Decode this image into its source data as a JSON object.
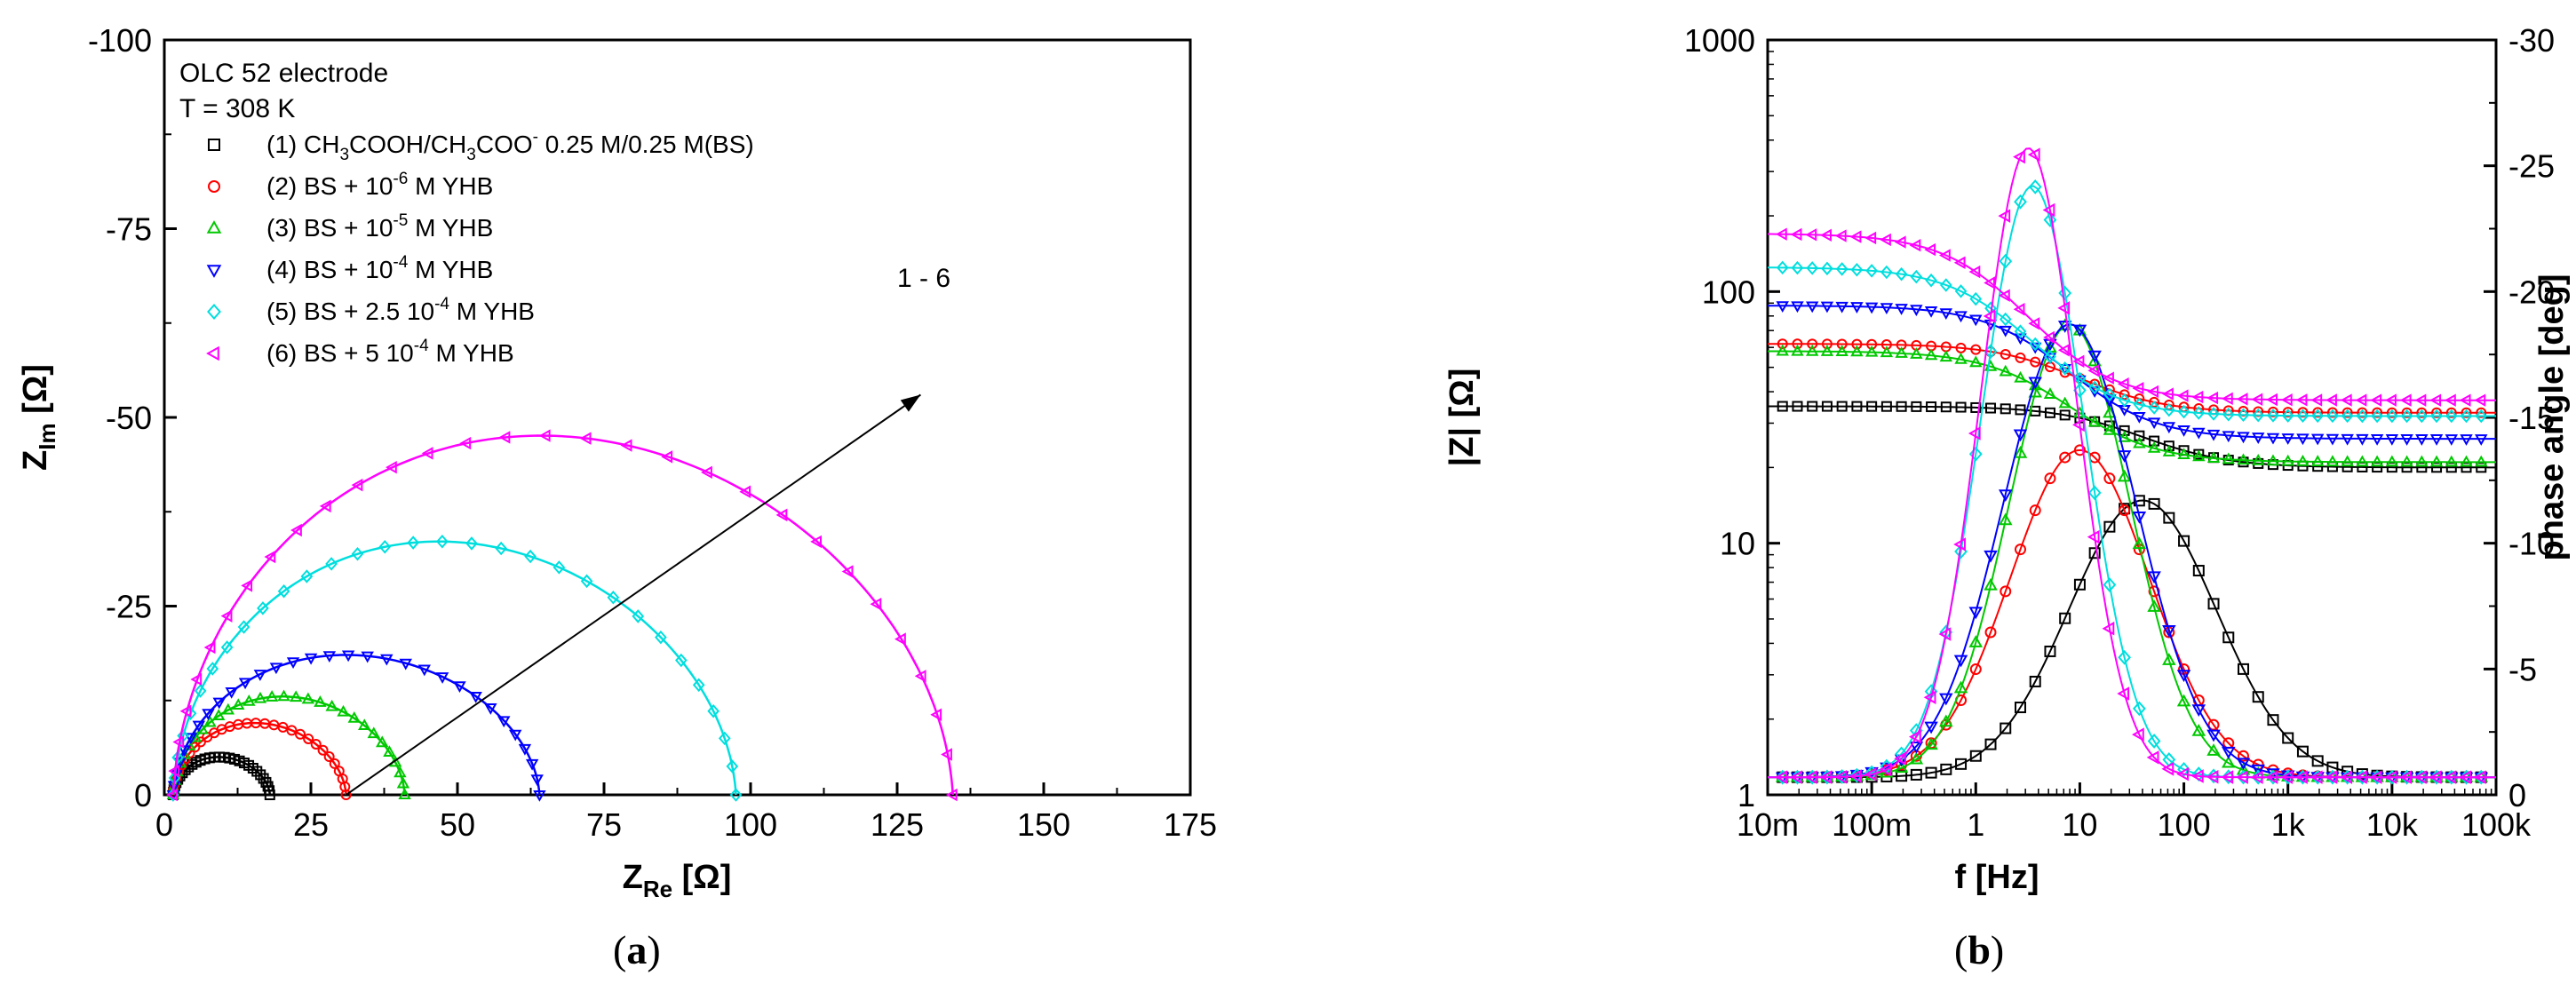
{
  "chart_data": [
    {
      "type": "scatter",
      "panel": "a",
      "panel_label": "(a)",
      "panel_label_parts": [
        "(",
        "a",
        ")"
      ],
      "xlabel": "Z_Re [Ω]",
      "xlabel_parts": {
        "main": "Z",
        "sub": "Re",
        "unit": " [Ω]"
      },
      "ylabel": "Z_Im [Ω]",
      "ylabel_parts": {
        "main": "Z",
        "sub": "Im",
        "unit": " [Ω]"
      },
      "xlim": [
        0,
        175
      ],
      "ylim": [
        0,
        -100
      ],
      "xticks": [
        0,
        25,
        50,
        75,
        100,
        125,
        150,
        175
      ],
      "xtick_labels": [
        "0",
        "25",
        "50",
        "75",
        "100",
        "125",
        "150",
        "175"
      ],
      "yticks": [
        0,
        -25,
        -50,
        -75,
        -100
      ],
      "ytick_labels": [
        "0",
        "-25",
        "-50",
        "-75",
        "-100"
      ],
      "annotations": [
        {
          "text": "OLC 52 electrode"
        },
        {
          "text": "T = 308 K"
        },
        {
          "text": "1 - 6",
          "arrow_from": [
            31,
            0
          ],
          "arrow_to": [
            129,
            -53
          ]
        }
      ],
      "legend": [
        {
          "label": "(1) CH3COOH/CH3COO- 0.25 M/0.25 M(BS)",
          "parts": [
            "(1) CH",
            "3",
            "COOH/CH",
            "3",
            "COO",
            "-",
            " 0.25 M/0.25 M(BS)"
          ],
          "color": "#000000",
          "marker": "square"
        },
        {
          "label": "(2) BS + 10-6 M YHB",
          "parts": [
            "(2) BS + 10",
            "-6",
            " M YHB"
          ],
          "color": "#ff0000",
          "marker": "circle"
        },
        {
          "label": "(3) BS + 10-5 M YHB",
          "parts": [
            "(3) BS + 10",
            "-5",
            " M YHB"
          ],
          "color": "#00c800",
          "marker": "triangle-up"
        },
        {
          "label": "(4) BS + 10-4 M YHB",
          "parts": [
            "(4) BS + 10",
            "-4",
            " M YHB"
          ],
          "color": "#0000ff",
          "marker": "triangle-down"
        },
        {
          "label": "(5) BS + 2.5 10-4 M YHB",
          "parts": [
            "(5) BS + 2.5 10",
            "-4",
            " M YHB"
          ],
          "color": "#00dede",
          "marker": "diamond"
        },
        {
          "label": "(6) BS + 5 10-4 M YHB",
          "parts": [
            "(6) BS + 5 10",
            "-4",
            " M YHB"
          ],
          "color": "#ff00ff",
          "marker": "triangle-left"
        }
      ],
      "series": [
        {
          "name": "(1)",
          "r0": 1.5,
          "r1": 18,
          "z_peak": -5,
          "n_points": 30
        },
        {
          "name": "(2)",
          "r0": 1.5,
          "r1": 31,
          "z_peak": -9.5,
          "n_points": 30
        },
        {
          "name": "(3)",
          "r0": 1.5,
          "r1": 41,
          "z_peak": -13,
          "n_points": 30
        },
        {
          "name": "(4)",
          "r0": 1.5,
          "r1": 64,
          "z_peak": -18.5,
          "n_points": 30
        },
        {
          "name": "(5)",
          "r0": 1.5,
          "r1": 97.5,
          "z_peak": -33.5,
          "n_points": 30
        },
        {
          "name": "(6)",
          "r0": 1.5,
          "r1": 134.5,
          "z_peak": -47.5,
          "n_points": 30
        }
      ]
    },
    {
      "type": "line",
      "panel": "b",
      "panel_label": "(b)",
      "panel_label_parts": [
        "(",
        "b",
        ")"
      ],
      "xlabel": "f [Hz]",
      "ylabel": "|Z| [Ω]",
      "y2label": "phase angle [deg]",
      "xscale": "log",
      "xlim": [
        0.01,
        100000
      ],
      "ylim": [
        1,
        1000
      ],
      "y2lim": [
        0,
        -30
      ],
      "xticks": [
        0.01,
        0.1,
        1,
        10,
        100,
        1000,
        10000,
        100000
      ],
      "xtick_labels": [
        "10m",
        "100m",
        "1",
        "10",
        "100",
        "1k",
        "10k",
        "100k"
      ],
      "yticks": [
        1,
        10,
        100,
        1000
      ],
      "ytick_labels": [
        "1",
        "10",
        "100",
        "1000"
      ],
      "y2ticks": [
        0,
        -5,
        -10,
        -15,
        -20,
        -25,
        -30
      ],
      "y2tick_labels": [
        "0",
        "-5",
        "-10",
        "-15",
        "-20",
        "-25",
        "-30"
      ],
      "series": [
        {
          "name": "(1)",
          "low_freq_modulus": 35,
          "high_freq_modulus": 20,
          "peak_phase": -11,
          "peak_freq": 40,
          "phase_width": 1.0
        },
        {
          "name": "(2)",
          "low_freq_modulus": 62,
          "high_freq_modulus": 33,
          "peak_phase": -13,
          "peak_freq": 10,
          "phase_width": 0.95
        },
        {
          "name": "(3)",
          "low_freq_modulus": 58,
          "high_freq_modulus": 21,
          "peak_phase": -18,
          "peak_freq": 8,
          "phase_width": 0.82
        },
        {
          "name": "(4)",
          "low_freq_modulus": 88,
          "high_freq_modulus": 26,
          "peak_phase": -18,
          "peak_freq": 8,
          "phase_width": 0.9
        },
        {
          "name": "(5)",
          "low_freq_modulus": 125,
          "high_freq_modulus": 32,
          "peak_phase": -23.5,
          "peak_freq": 3.5,
          "phase_width": 0.7
        },
        {
          "name": "(6)",
          "low_freq_modulus": 170,
          "high_freq_modulus": 37,
          "peak_phase": -25,
          "peak_freq": 3.2,
          "phase_width": 0.65
        }
      ]
    }
  ]
}
